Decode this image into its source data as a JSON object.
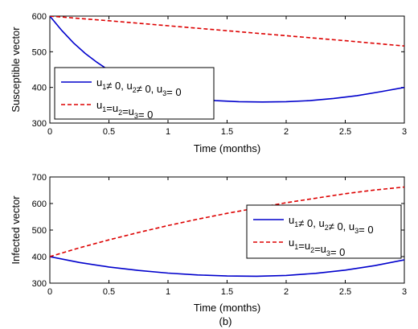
{
  "chart_data": [
    {
      "type": "line",
      "xlabel": "Time (months)",
      "ylabel": "Susceptible vector",
      "xlim": [
        0,
        3
      ],
      "ylim": [
        300,
        600
      ],
      "xticks": [
        0,
        0.5,
        1,
        1.5,
        2,
        2.5,
        3
      ],
      "xtick_labels": [
        "0",
        "0.5",
        "1",
        "1.5",
        "2",
        "2.5",
        "3"
      ],
      "yticks": [
        300,
        400,
        500,
        600
      ],
      "ytick_labels": [
        "300",
        "400",
        "500",
        "600"
      ],
      "legend_position": "left",
      "legend": [
        {
          "text": "u1≠ 0, u2≠ 0, u3= 0",
          "parts": [
            [
              "u",
              "1"
            ],
            [
              "≠ 0, u",
              "2"
            ],
            [
              "≠ 0, u",
              "3"
            ],
            [
              "= 0",
              ""
            ]
          ]
        },
        {
          "text": "u1=u2=u3= 0",
          "parts": [
            [
              "u",
              "1"
            ],
            [
              "=u",
              "2"
            ],
            [
              "=u",
              "3"
            ],
            [
              "= 0",
              ""
            ]
          ]
        }
      ],
      "series": [
        {
          "color": "#0000cc",
          "dash": "solid",
          "x": [
            0,
            0.1,
            0.2,
            0.3,
            0.4,
            0.5,
            0.6,
            0.8,
            1.0,
            1.2,
            1.4,
            1.6,
            1.8,
            2.0,
            2.2,
            2.4,
            2.6,
            2.8,
            3.0
          ],
          "y": [
            600,
            560,
            525,
            495,
            470,
            448,
            430,
            402,
            382,
            370,
            363,
            360,
            359,
            360,
            363,
            369,
            377,
            388,
            400
          ]
        },
        {
          "color": "#dd0000",
          "dash": "dashed",
          "x": [
            0,
            0.5,
            1.0,
            1.5,
            2.0,
            2.5,
            3.0
          ],
          "y": [
            600,
            587,
            573,
            559,
            545,
            531,
            516
          ]
        }
      ]
    },
    {
      "type": "line",
      "xlabel": "Time (months)",
      "ylabel": "Infected vector",
      "xlim": [
        0,
        3
      ],
      "ylim": [
        300,
        700
      ],
      "xticks": [
        0,
        0.5,
        1,
        1.5,
        2,
        2.5,
        3
      ],
      "xtick_labels": [
        "0",
        "0.5",
        "1",
        "1.5",
        "2",
        "2.5",
        "3"
      ],
      "yticks": [
        300,
        400,
        500,
        600,
        700
      ],
      "ytick_labels": [
        "300",
        "400",
        "500",
        "600",
        "700"
      ],
      "legend_position": "right",
      "caption": "(b)",
      "legend": [
        {
          "text": "u1≠ 0, u2≠ 0, u3= 0",
          "parts": [
            [
              "u",
              "1"
            ],
            [
              "≠ 0, u",
              "2"
            ],
            [
              "≠ 0, u",
              "3"
            ],
            [
              "= 0",
              ""
            ]
          ]
        },
        {
          "text": "u1=u2=u3= 0",
          "parts": [
            [
              "u",
              "1"
            ],
            [
              "=u",
              "2"
            ],
            [
              "=u",
              "3"
            ],
            [
              "= 0",
              ""
            ]
          ]
        }
      ],
      "series": [
        {
          "color": "#0000cc",
          "dash": "solid",
          "x": [
            0,
            0.25,
            0.5,
            0.75,
            1.0,
            1.25,
            1.5,
            1.75,
            2.0,
            2.25,
            2.5,
            2.75,
            3.0
          ],
          "y": [
            400,
            378,
            361,
            348,
            338,
            331,
            327,
            326,
            329,
            337,
            349,
            366,
            388
          ]
        },
        {
          "color": "#dd0000",
          "dash": "dashed",
          "x": [
            0,
            0.25,
            0.5,
            0.75,
            1.0,
            1.25,
            1.5,
            1.75,
            2.0,
            2.25,
            2.5,
            2.75,
            3.0
          ],
          "y": [
            400,
            433,
            463,
            491,
            517,
            541,
            563,
            583,
            603,
            620,
            637,
            651,
            662
          ]
        }
      ]
    }
  ]
}
